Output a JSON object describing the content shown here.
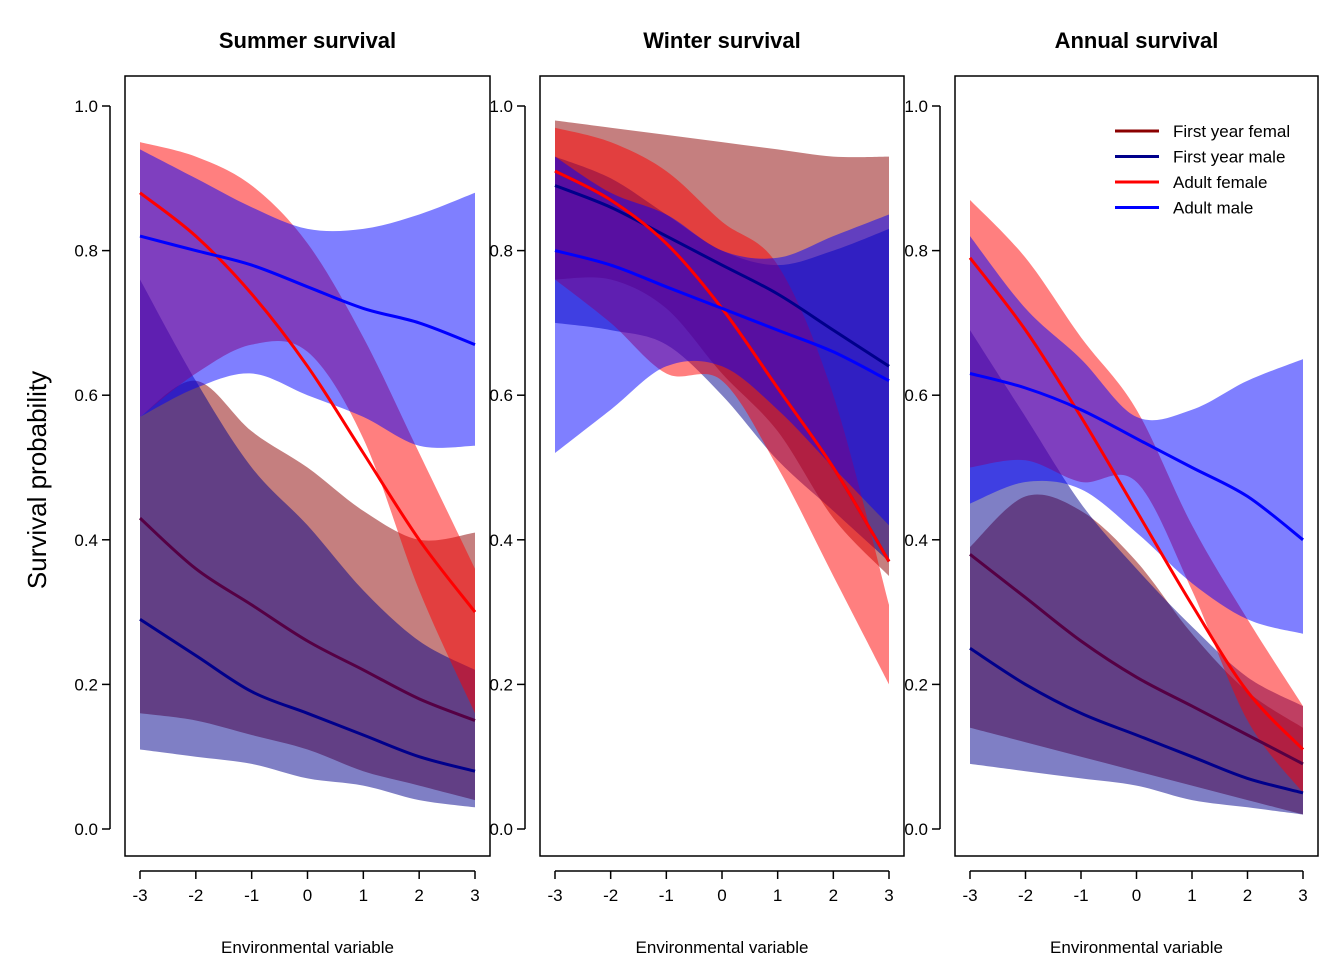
{
  "chart_data": {
    "type": "line",
    "ylabel": "Survival probability",
    "xlabel": "Environmental variable",
    "xlim": [
      -3,
      3
    ],
    "ylim": [
      0,
      1
    ],
    "x_ticks": [
      "-3",
      "-2",
      "-1",
      "0",
      "1",
      "2",
      "3"
    ],
    "y_ticks": [
      "0.0",
      "0.2",
      "0.4",
      "0.6",
      "0.8",
      "1.0"
    ],
    "legend": {
      "placement": "top-right",
      "panel": 2,
      "entries": [
        {
          "label": "First year femal",
          "color": "#8B0000"
        },
        {
          "label": "First year male",
          "color": "#00008B"
        },
        {
          "label": "Adult female",
          "color": "#FF0000"
        },
        {
          "label": "Adult male",
          "color": "#0000FF"
        }
      ]
    },
    "panels": [
      {
        "title": "Summer survival",
        "x": [
          -3,
          -2,
          -1,
          0,
          1,
          2,
          3
        ],
        "series": [
          {
            "color": "#550044",
            "mean": [
              0.43,
              0.36,
              0.31,
              0.26,
              0.22,
              0.18,
              0.15
            ],
            "lower": [
              0.16,
              0.15,
              0.13,
              0.11,
              0.08,
              0.06,
              0.04
            ],
            "upper": [
              0.57,
              0.62,
              0.55,
              0.5,
              0.44,
              0.4,
              0.41
            ],
            "band_color": "#8B0000",
            "band_opacity": 0.5
          },
          {
            "color": "#00008B",
            "mean": [
              0.29,
              0.24,
              0.19,
              0.16,
              0.13,
              0.1,
              0.08
            ],
            "lower": [
              0.11,
              0.1,
              0.09,
              0.07,
              0.06,
              0.04,
              0.03
            ],
            "upper": [
              0.76,
              0.62,
              0.5,
              0.42,
              0.33,
              0.26,
              0.22
            ],
            "band_color": "#00008B",
            "band_opacity": 0.5
          },
          {
            "color": "#FF0000",
            "mean": [
              0.88,
              0.82,
              0.74,
              0.64,
              0.52,
              0.4,
              0.3
            ],
            "lower": [
              0.57,
              0.63,
              0.67,
              0.66,
              0.54,
              0.33,
              0.16
            ],
            "upper": [
              0.95,
              0.93,
              0.89,
              0.81,
              0.68,
              0.52,
              0.36
            ],
            "band_color": "#FF0000",
            "band_opacity": 0.5
          },
          {
            "color": "#0000FF",
            "mean": [
              0.82,
              0.8,
              0.78,
              0.75,
              0.72,
              0.7,
              0.67
            ],
            "lower": [
              0.57,
              0.61,
              0.63,
              0.6,
              0.57,
              0.53,
              0.53
            ],
            "upper": [
              0.94,
              0.9,
              0.86,
              0.83,
              0.83,
              0.85,
              0.88
            ],
            "band_color": "#0000FF",
            "band_opacity": 0.5
          }
        ]
      },
      {
        "title": "Winter survival",
        "x": [
          -3,
          -2,
          -1,
          0,
          1,
          2,
          3
        ],
        "series": [
          {
            "color": "#880044",
            "mean": [
              0.91,
              0.87,
              0.81,
              0.72,
              0.61,
              0.5,
              0.37
            ],
            "lower": [
              0.76,
              0.76,
              0.72,
              0.63,
              0.55,
              0.43,
              0.35
            ],
            "upper": [
              0.98,
              0.97,
              0.96,
              0.95,
              0.94,
              0.93,
              0.93
            ],
            "band_color": "#8B0000",
            "band_opacity": 0.5
          },
          {
            "color": "#00008B",
            "mean": [
              0.89,
              0.86,
              0.82,
              0.78,
              0.74,
              0.69,
              0.64
            ],
            "lower": [
              0.7,
              0.69,
              0.67,
              0.6,
              0.51,
              0.44,
              0.37
            ],
            "upper": [
              0.93,
              0.9,
              0.85,
              0.8,
              0.78,
              0.8,
              0.83
            ],
            "band_color": "#00008B",
            "band_opacity": 0.5
          },
          {
            "color": "#FF0000",
            "mean": [
              0.91,
              0.87,
              0.81,
              0.72,
              0.61,
              0.5,
              0.37
            ],
            "lower": [
              0.76,
              0.7,
              0.63,
              0.62,
              0.5,
              0.35,
              0.2
            ],
            "upper": [
              0.97,
              0.95,
              0.91,
              0.84,
              0.78,
              0.6,
              0.31
            ],
            "band_color": "#FF0000",
            "band_opacity": 0.5
          },
          {
            "color": "#0000FF",
            "mean": [
              0.8,
              0.78,
              0.75,
              0.72,
              0.69,
              0.66,
              0.62
            ],
            "lower": [
              0.52,
              0.58,
              0.64,
              0.64,
              0.58,
              0.5,
              0.42
            ],
            "upper": [
              0.93,
              0.88,
              0.85,
              0.8,
              0.79,
              0.82,
              0.85
            ],
            "band_color": "#0000FF",
            "band_opacity": 0.5
          }
        ]
      },
      {
        "title": "Annual survival",
        "x": [
          -3,
          -2,
          -1,
          0,
          1,
          2,
          3
        ],
        "series": [
          {
            "color": "#550044",
            "mean": [
              0.38,
              0.32,
              0.26,
              0.21,
              0.17,
              0.13,
              0.09
            ],
            "lower": [
              0.14,
              0.12,
              0.1,
              0.08,
              0.06,
              0.04,
              0.02
            ],
            "upper": [
              0.39,
              0.46,
              0.44,
              0.37,
              0.27,
              0.19,
              0.14
            ],
            "band_color": "#8B0000",
            "band_opacity": 0.5
          },
          {
            "color": "#00008B",
            "mean": [
              0.25,
              0.2,
              0.16,
              0.13,
              0.1,
              0.07,
              0.05
            ],
            "lower": [
              0.09,
              0.08,
              0.07,
              0.06,
              0.04,
              0.03,
              0.02
            ],
            "upper": [
              0.69,
              0.57,
              0.45,
              0.36,
              0.28,
              0.21,
              0.17
            ],
            "band_color": "#00008B",
            "band_opacity": 0.5
          },
          {
            "color": "#FF0000",
            "mean": [
              0.79,
              0.69,
              0.57,
              0.44,
              0.31,
              0.19,
              0.11
            ],
            "lower": [
              0.5,
              0.51,
              0.48,
              0.48,
              0.33,
              0.15,
              0.05
            ],
            "upper": [
              0.87,
              0.79,
              0.68,
              0.58,
              0.42,
              0.29,
              0.17
            ],
            "band_color": "#FF0000",
            "band_opacity": 0.5
          },
          {
            "color": "#0000FF",
            "mean": [
              0.63,
              0.61,
              0.58,
              0.54,
              0.5,
              0.46,
              0.4
            ],
            "lower": [
              0.45,
              0.48,
              0.47,
              0.41,
              0.34,
              0.29,
              0.27
            ],
            "upper": [
              0.82,
              0.72,
              0.65,
              0.57,
              0.58,
              0.62,
              0.65
            ],
            "band_color": "#0000FF",
            "band_opacity": 0.5
          }
        ]
      }
    ]
  }
}
